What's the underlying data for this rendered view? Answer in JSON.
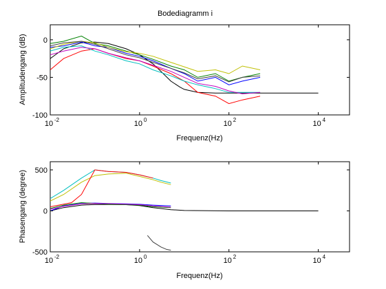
{
  "figure": {
    "title": "Bodediagramm i"
  },
  "chart_data": [
    {
      "type": "line",
      "title": "Bodediagramm i",
      "xlabel": "Frequenz(Hz)",
      "ylabel": "Amplitudengang (dB)",
      "xscale": "log",
      "xlim": [
        0.01,
        50000
      ],
      "ylim": [
        -100,
        20
      ],
      "xticks": [
        0.01,
        1,
        100,
        10000
      ],
      "xtick_labels": [
        {
          "base": "10",
          "exp": "-2"
        },
        {
          "base": "10",
          "exp": "0"
        },
        {
          "base": "10",
          "exp": "2"
        },
        {
          "base": "10",
          "exp": "4"
        }
      ],
      "yticks": [
        -100,
        -50,
        0
      ],
      "ytick_labels": [
        "-100",
        "-50",
        "0"
      ],
      "grid": false,
      "legend": false,
      "series": [
        {
          "color": "#000000",
          "x": [
            0.01,
            0.02,
            0.05,
            0.1,
            0.2,
            0.5,
            1,
            2,
            3,
            5,
            8,
            10,
            20,
            50,
            100,
            1000,
            10000
          ],
          "values": [
            -25,
            -12,
            -4,
            -3,
            -5,
            -12,
            -20,
            -32,
            -42,
            -55,
            -63,
            -66,
            -70,
            -71,
            -71,
            -71,
            -71
          ]
        },
        {
          "color": "#0000ff",
          "x": [
            0.01,
            0.02,
            0.05,
            0.1,
            0.2,
            0.5,
            1,
            2,
            5,
            10,
            20,
            50,
            100,
            200,
            500
          ],
          "values": [
            -10,
            -8,
            -3,
            -8,
            -10,
            -18,
            -22,
            -28,
            -38,
            -45,
            -55,
            -50,
            -60,
            -55,
            -50
          ]
        },
        {
          "color": "#008000",
          "x": [
            0.01,
            0.02,
            0.05,
            0.1,
            0.2,
            0.5,
            1,
            2,
            5,
            10,
            20,
            50,
            100,
            200,
            500
          ],
          "values": [
            -5,
            -2,
            5,
            -5,
            -8,
            -15,
            -20,
            -26,
            -35,
            -40,
            -50,
            -45,
            -55,
            -50,
            -45
          ]
        },
        {
          "color": "#ff0000",
          "x": [
            0.01,
            0.02,
            0.05,
            0.1,
            0.2,
            0.5,
            1,
            2,
            5,
            10,
            20,
            50,
            100,
            200,
            500
          ],
          "values": [
            -40,
            -25,
            -15,
            -12,
            -18,
            -25,
            -28,
            -35,
            -45,
            -55,
            -70,
            -75,
            -85,
            -80,
            -75
          ]
        },
        {
          "color": "#00bfbf",
          "x": [
            0.01,
            0.02,
            0.05,
            0.1,
            0.2,
            0.5,
            1,
            2,
            5,
            10,
            20,
            50,
            100,
            200,
            500
          ],
          "values": [
            -15,
            -10,
            -8,
            -15,
            -20,
            -28,
            -32,
            -40,
            -48,
            -55,
            -60,
            -65,
            -70,
            -70,
            -70
          ]
        },
        {
          "color": "#bf00bf",
          "x": [
            0.01,
            0.02,
            0.05,
            0.1,
            0.2,
            0.5,
            1,
            2,
            5,
            10,
            20,
            50,
            100,
            200,
            500
          ],
          "values": [
            -20,
            -15,
            -10,
            -12,
            -18,
            -24,
            -28,
            -34,
            -42,
            -50,
            -58,
            -62,
            -68,
            -72,
            -70
          ]
        },
        {
          "color": "#bfbf00",
          "x": [
            0.01,
            0.02,
            0.05,
            0.1,
            0.2,
            0.5,
            1,
            2,
            5,
            10,
            20,
            50,
            100,
            200,
            500
          ],
          "values": [
            -12,
            -6,
            -2,
            -4,
            -10,
            -16,
            -18,
            -22,
            -30,
            -36,
            -42,
            -40,
            -45,
            -35,
            -40
          ]
        },
        {
          "color": "#404040",
          "x": [
            0.01,
            0.02,
            0.05,
            0.1,
            0.2,
            0.5,
            1,
            2,
            5,
            10,
            20,
            50,
            100,
            200,
            500
          ],
          "values": [
            -8,
            -4,
            -2,
            -6,
            -12,
            -20,
            -24,
            -30,
            -38,
            -44,
            -52,
            -48,
            -56,
            -50,
            -48
          ]
        }
      ]
    },
    {
      "type": "line",
      "xlabel": "Frequenz(Hz)",
      "ylabel": "Phasengang (degree)",
      "xscale": "log",
      "xlim": [
        0.01,
        50000
      ],
      "ylim": [
        -500,
        600
      ],
      "xticks": [
        0.01,
        1,
        100,
        10000
      ],
      "xtick_labels": [
        {
          "base": "10",
          "exp": "-2"
        },
        {
          "base": "10",
          "exp": "0"
        },
        {
          "base": "10",
          "exp": "2"
        },
        {
          "base": "10",
          "exp": "4"
        }
      ],
      "yticks": [
        -500,
        0,
        500
      ],
      "ytick_labels": [
        "-500",
        "0",
        "500"
      ],
      "grid": false,
      "legend": false,
      "series": [
        {
          "color": "#000000",
          "x": [
            0.01,
            0.02,
            0.05,
            0.1,
            0.2,
            0.5,
            1,
            2,
            5,
            10,
            100,
            1000,
            10000
          ],
          "values": [
            0,
            40,
            70,
            78,
            78,
            75,
            65,
            40,
            15,
            5,
            0,
            0,
            0
          ]
        },
        {
          "color": "#00bfbf",
          "x": [
            0.01,
            0.02,
            0.05,
            0.1,
            0.2,
            0.5,
            1,
            2,
            3,
            5
          ],
          "values": [
            150,
            250,
            400,
            500,
            480,
            470,
            440,
            400,
            370,
            340
          ]
        },
        {
          "color": "#bfbf00",
          "x": [
            0.01,
            0.02,
            0.05,
            0.1,
            0.2,
            0.5,
            1,
            2,
            3,
            5
          ],
          "values": [
            120,
            200,
            350,
            430,
            450,
            460,
            420,
            380,
            350,
            320
          ]
        },
        {
          "color": "#ff0000",
          "x": [
            0.01,
            0.03,
            0.05,
            0.1,
            0.2,
            0.5,
            1,
            2
          ],
          "values": [
            50,
            100,
            200,
            500,
            480,
            470,
            440,
            400
          ]
        },
        {
          "color": "#0000ff",
          "x": [
            0.01,
            0.02,
            0.05,
            0.1,
            0.2,
            0.5,
            1,
            2,
            5
          ],
          "values": [
            0,
            60,
            90,
            95,
            90,
            85,
            80,
            70,
            60
          ]
        },
        {
          "color": "#008000",
          "x": [
            0.01,
            0.02,
            0.05,
            0.1,
            0.2,
            0.5,
            1,
            2,
            5
          ],
          "values": [
            30,
            70,
            100,
            90,
            80,
            75,
            70,
            50,
            40
          ]
        },
        {
          "color": "#bf00bf",
          "x": [
            0.01,
            0.02,
            0.05,
            0.1,
            0.2,
            0.5,
            1,
            2,
            5
          ],
          "values": [
            20,
            55,
            85,
            90,
            88,
            82,
            75,
            60,
            45
          ]
        },
        {
          "color": "#404040",
          "x": [
            1.5,
            2,
            3,
            4,
            5
          ],
          "values": [
            -300,
            -380,
            -440,
            -470,
            -480
          ]
        }
      ]
    }
  ]
}
